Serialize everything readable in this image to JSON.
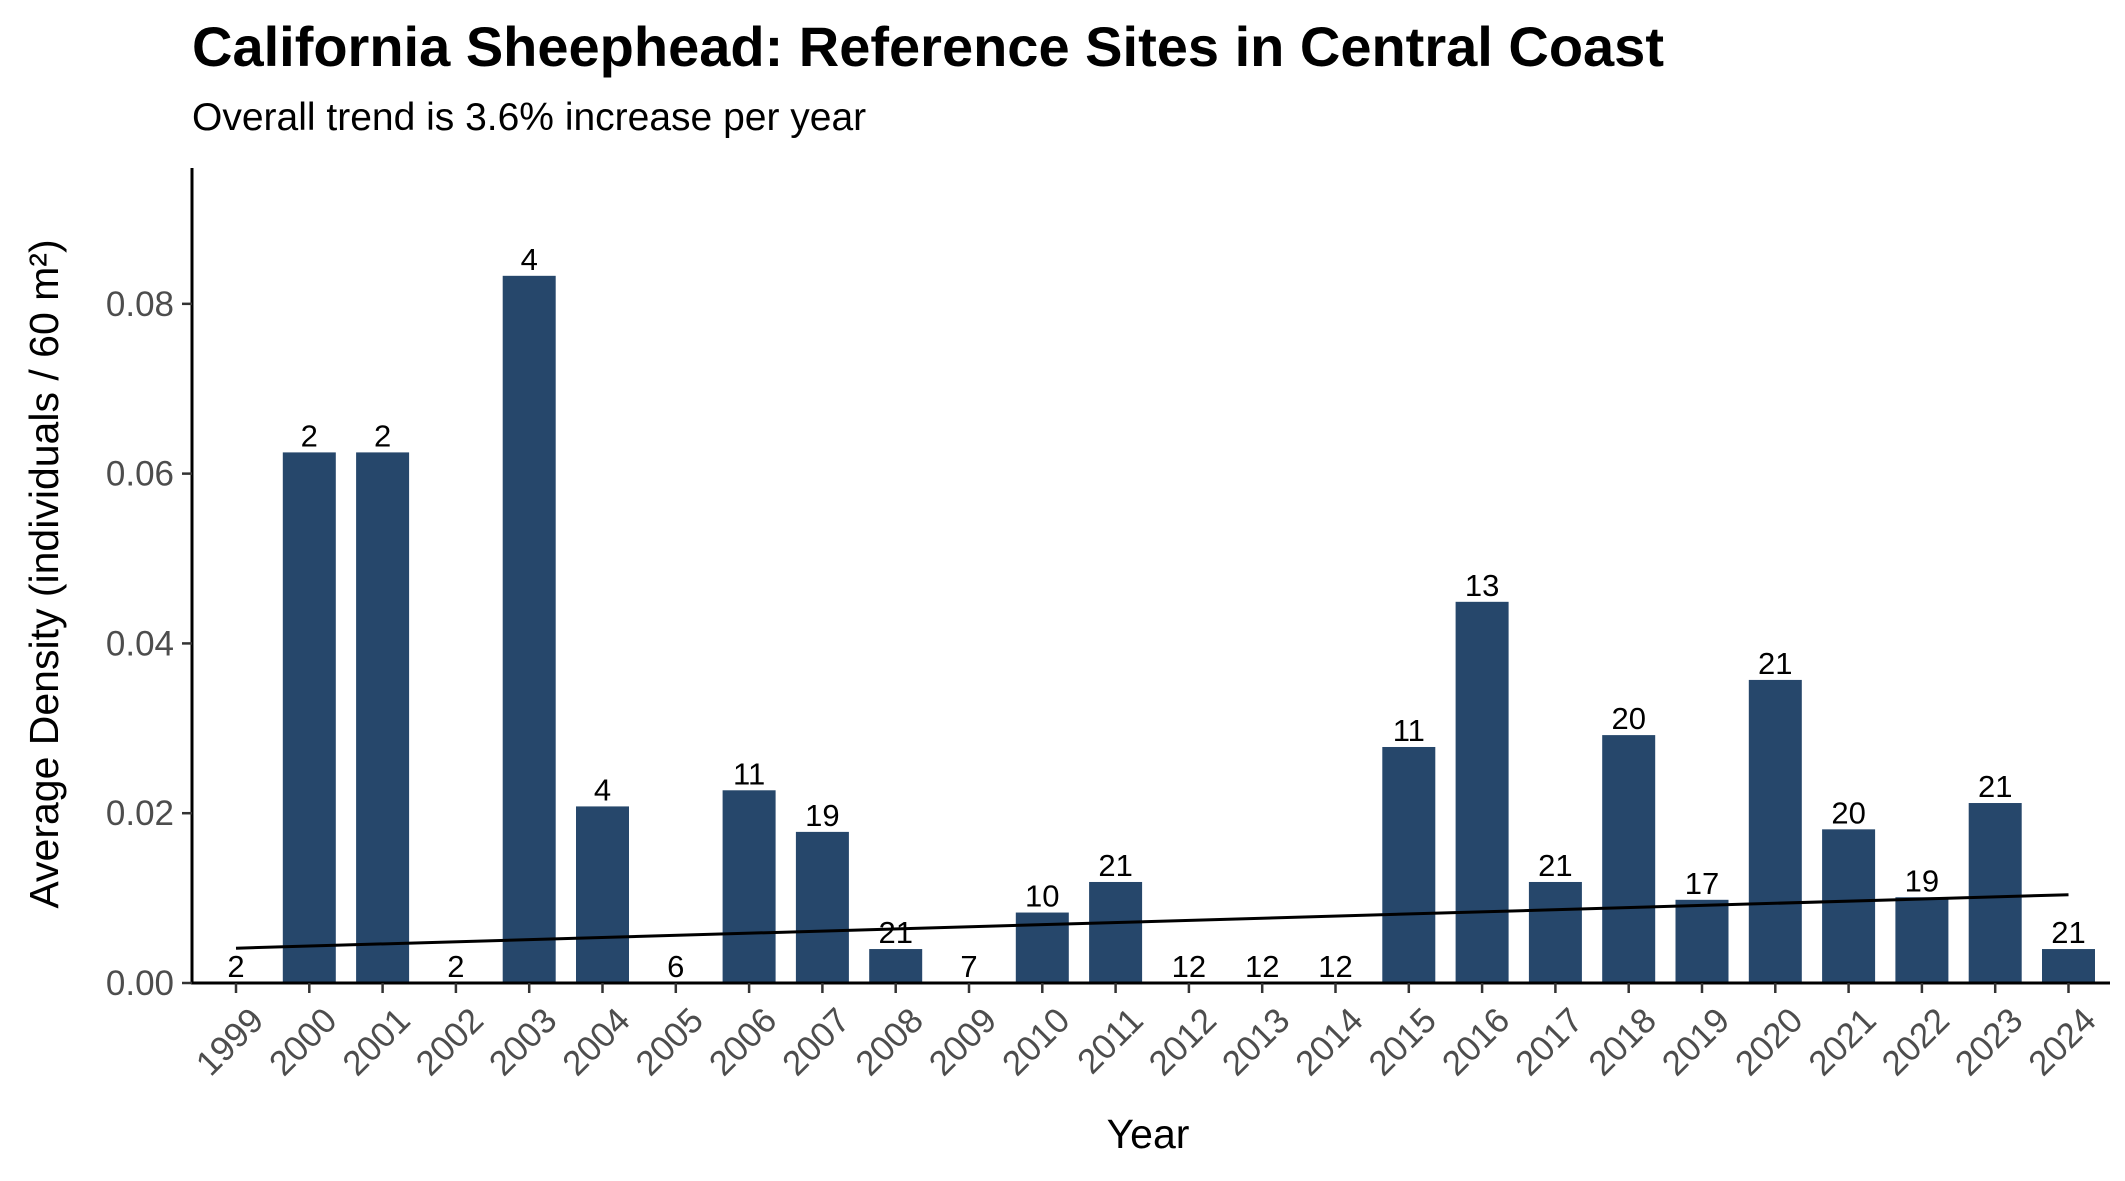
{
  "chart_data": {
    "type": "bar",
    "title": "California Sheephead: Reference Sites in Central Coast",
    "subtitle": "Overall trend is 3.6% increase per year",
    "xlabel": "Year",
    "ylabel": "Average Density (individuals / 60 m²)",
    "categories": [
      "1999",
      "2000",
      "2001",
      "2002",
      "2003",
      "2004",
      "2005",
      "2006",
      "2007",
      "2008",
      "2009",
      "2010",
      "2011",
      "2012",
      "2013",
      "2014",
      "2015",
      "2016",
      "2017",
      "2018",
      "2019",
      "2020",
      "2021",
      "2022",
      "2023",
      "2024"
    ],
    "values": [
      0,
      0.0625,
      0.0625,
      0,
      0.0833,
      0.0208,
      0,
      0.0227,
      0.0178,
      0.004,
      0,
      0.0083,
      0.0119,
      0,
      0,
      0,
      0.0278,
      0.0449,
      0.0119,
      0.0292,
      0.0098,
      0.0357,
      0.0181,
      0.0101,
      0.0212,
      0.004
    ],
    "bar_labels": [
      "2",
      "2",
      "2",
      "2",
      "4",
      "4",
      "6",
      "11",
      "19",
      "21",
      "7",
      "10",
      "21",
      "12",
      "12",
      "12",
      "11",
      "13",
      "21",
      "20",
      "17",
      "21",
      "20",
      "19",
      "21",
      "21"
    ],
    "ylim": [
      0,
      0.096
    ],
    "yticks": [
      "0.00",
      "0.02",
      "0.04",
      "0.06",
      "0.08"
    ],
    "trend_line": {
      "start": [
        1999,
        0.0041
      ],
      "end": [
        2024,
        0.0104
      ]
    },
    "grid": false,
    "legend": "none",
    "colors": {
      "bar": "#26476B",
      "trend": "#000000",
      "axis": "#000000"
    }
  }
}
